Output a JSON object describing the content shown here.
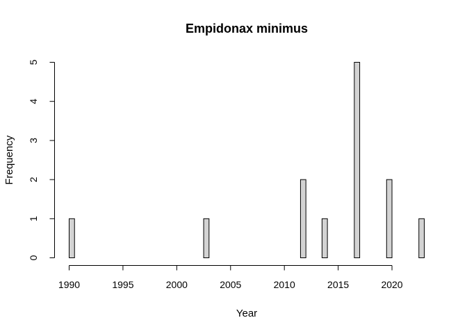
{
  "chart_data": {
    "type": "bar",
    "title": "Empidonax minimus",
    "xlabel": "Year",
    "ylabel": "Frequency",
    "xlim": [
      1990,
      2023
    ],
    "ylim": [
      0,
      5
    ],
    "bin_width": 0.5,
    "x_ticks": [
      1990,
      1995,
      2000,
      2005,
      2010,
      2015,
      2020
    ],
    "y_ticks": [
      0,
      1,
      2,
      3,
      4,
      5
    ],
    "bins": [
      {
        "start": 1990.0,
        "end": 1990.5,
        "count": 1
      },
      {
        "start": 2002.5,
        "end": 2003.0,
        "count": 1
      },
      {
        "start": 2011.5,
        "end": 2012.0,
        "count": 2
      },
      {
        "start": 2013.5,
        "end": 2014.0,
        "count": 1
      },
      {
        "start": 2016.5,
        "end": 2017.0,
        "count": 5
      },
      {
        "start": 2019.5,
        "end": 2020.0,
        "count": 2
      },
      {
        "start": 2022.5,
        "end": 2023.0,
        "count": 1
      }
    ],
    "colors": {
      "bar_fill": "#d3d3d3",
      "bar_stroke": "#000000"
    },
    "grid": false,
    "legend": "none"
  }
}
